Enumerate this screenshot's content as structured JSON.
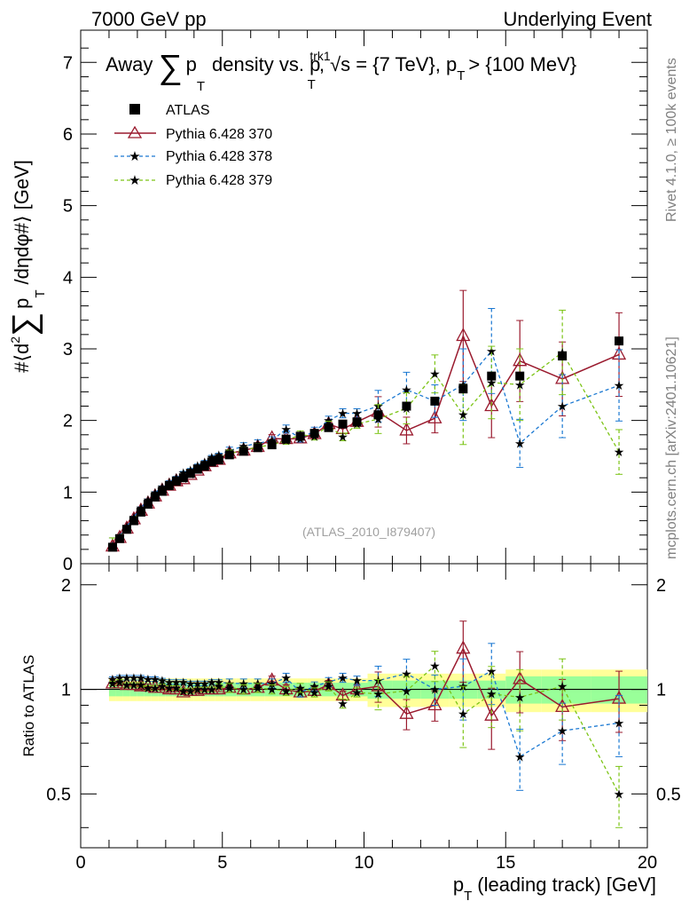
{
  "header": {
    "left": "7000 GeV pp",
    "right": "Underlying Event"
  },
  "side_labels": {
    "rivet": "Rivet 4.1.0, ≥ 100k events",
    "mcplots": "mcplots.cern.ch [arXiv:2401.10621]"
  },
  "watermark": "(ATLAS_2010_I879407)",
  "colors": {
    "atlas": "#000000",
    "py370": "#9a1a2e",
    "py378": "#1a78d2",
    "py379": "#7cc416",
    "band_yellow": "#ffff99",
    "band_green": "#99ff99"
  },
  "chart_data": [
    {
      "type": "scatter",
      "title": {
        "a": "Away",
        "sum": "∑",
        "b": "p",
        "b_sub": "T",
        "c": "density vs. p",
        "c_sup": "trk1",
        "c_sub": "T",
        "d": ", √s = {7 TeV}, p",
        "d_sub": "T",
        "e": "> {100 MeV}"
      },
      "ylabel": "#⟨d² ∑ p_T /dηdφ#⟩ [GeV]",
      "ylabel_parts": {
        "a": "#⟨d",
        "a_sup": "2",
        "sum": "∑",
        "b": "p",
        "b_sub": "T",
        "c": "/dηdφ#⟩ [GeV]"
      },
      "xlim": [
        0,
        20
      ],
      "ylim": [
        0,
        7.45
      ],
      "x_ticks": [
        "0",
        "5",
        "10",
        "15",
        "20"
      ],
      "y_ticks": [
        "0",
        "1",
        "2",
        "3",
        "4",
        "5",
        "6",
        "7"
      ],
      "legend_position": "top-left",
      "legend": [
        "ATLAS",
        "Pythia 6.428 370",
        "Pythia 6.428 378",
        "Pythia 6.428 379"
      ],
      "x": [
        1.125,
        1.375,
        1.625,
        1.875,
        2.125,
        2.375,
        2.625,
        2.875,
        3.125,
        3.375,
        3.625,
        3.875,
        4.125,
        4.375,
        4.625,
        4.875,
        5.25,
        5.75,
        6.25,
        6.75,
        7.25,
        7.75,
        8.25,
        8.75,
        9.25,
        9.75,
        10.5,
        11.5,
        12.5,
        13.5,
        14.5,
        15.5,
        17.0,
        19.0
      ],
      "series": [
        {
          "name": "ATLAS",
          "values": [
            0.23,
            0.35,
            0.48,
            0.6,
            0.72,
            0.83,
            0.93,
            1.01,
            1.09,
            1.15,
            1.2,
            1.26,
            1.32,
            1.36,
            1.42,
            1.45,
            1.52,
            1.57,
            1.62,
            1.66,
            1.74,
            1.78,
            1.82,
            1.9,
            1.95,
            1.98,
            2.08,
            2.2,
            2.27,
            2.44,
            2.62,
            2.62,
            2.9,
            3.11
          ]
        },
        {
          "name": "Pythia 6.428 370",
          "values": [
            0.24,
            0.36,
            0.49,
            0.62,
            0.74,
            0.84,
            0.94,
            1.02,
            1.09,
            1.15,
            1.18,
            1.24,
            1.3,
            1.36,
            1.42,
            1.45,
            1.54,
            1.58,
            1.63,
            1.75,
            1.74,
            1.75,
            1.81,
            1.95,
            1.88,
            1.98,
            2.12,
            1.86,
            2.03,
            3.18,
            2.2,
            2.83,
            2.58,
            2.92
          ]
        },
        {
          "name": "Pythia 6.428 378",
          "values": [
            0.25,
            0.38,
            0.52,
            0.65,
            0.78,
            0.89,
            0.99,
            1.07,
            1.14,
            1.2,
            1.27,
            1.31,
            1.37,
            1.42,
            1.49,
            1.52,
            1.58,
            1.64,
            1.68,
            1.72,
            1.88,
            1.75,
            1.85,
            2.0,
            2.1,
            2.1,
            2.2,
            2.43,
            2.27,
            2.5,
            2.97,
            1.68,
            2.2,
            2.49
          ]
        },
        {
          "name": "Pythia 6.428 379",
          "values": [
            0.24,
            0.37,
            0.49,
            0.62,
            0.74,
            0.84,
            0.94,
            1.03,
            1.1,
            1.16,
            1.19,
            1.25,
            1.32,
            1.36,
            1.42,
            1.48,
            1.54,
            1.58,
            1.63,
            1.66,
            1.72,
            1.8,
            1.78,
            1.93,
            1.77,
            1.95,
            2.02,
            2.17,
            2.65,
            2.08,
            2.53,
            2.5,
            2.95,
            1.56
          ]
        }
      ]
    },
    {
      "type": "scatter",
      "title": "",
      "ylabel": "Ratio to ATLAS",
      "xlabel": "p_T (leading track) [GeV]",
      "xlabel_parts": {
        "a": "p",
        "a_sub": "T",
        "b": "(leading track) [GeV]"
      },
      "xlim": [
        0,
        20
      ],
      "ylim": [
        0.35,
        2.3
      ],
      "x_ticks": [
        "0",
        "5",
        "10",
        "15",
        "20"
      ],
      "y_ticks": [
        "0.5",
        "1",
        "2"
      ],
      "series": [
        {
          "name": "Pythia 6.428 370",
          "values": [
            1.04,
            1.04,
            1.03,
            1.03,
            1.02,
            1.02,
            1.01,
            1.01,
            1.0,
            1.0,
            0.98,
            0.99,
            0.99,
            1.0,
            1.0,
            1.0,
            1.01,
            1.0,
            1.01,
            1.06,
            1.0,
            0.98,
            0.99,
            1.03,
            0.96,
            1.0,
            1.02,
            0.85,
            0.9,
            1.31,
            0.84,
            1.07,
            0.89,
            0.94
          ]
        },
        {
          "name": "Pythia 6.428 378",
          "values": [
            1.07,
            1.08,
            1.08,
            1.08,
            1.08,
            1.07,
            1.07,
            1.06,
            1.05,
            1.05,
            1.05,
            1.04,
            1.04,
            1.04,
            1.05,
            1.05,
            1.04,
            1.04,
            1.04,
            1.04,
            1.08,
            0.98,
            1.02,
            1.05,
            1.08,
            1.06,
            1.06,
            1.11,
            1.0,
            1.02,
            1.13,
            0.64,
            0.76,
            0.8
          ]
        },
        {
          "name": "Pythia 6.428 379",
          "values": [
            1.04,
            1.05,
            1.03,
            1.03,
            1.03,
            1.01,
            1.01,
            1.02,
            1.01,
            1.01,
            0.99,
            0.99,
            1.0,
            1.0,
            1.0,
            1.02,
            1.01,
            1.0,
            1.01,
            1.0,
            0.99,
            1.01,
            0.98,
            1.02,
            0.91,
            0.98,
            0.97,
            0.99,
            1.17,
            0.85,
            0.97,
            0.95,
            1.02,
            0.5
          ]
        }
      ]
    }
  ]
}
